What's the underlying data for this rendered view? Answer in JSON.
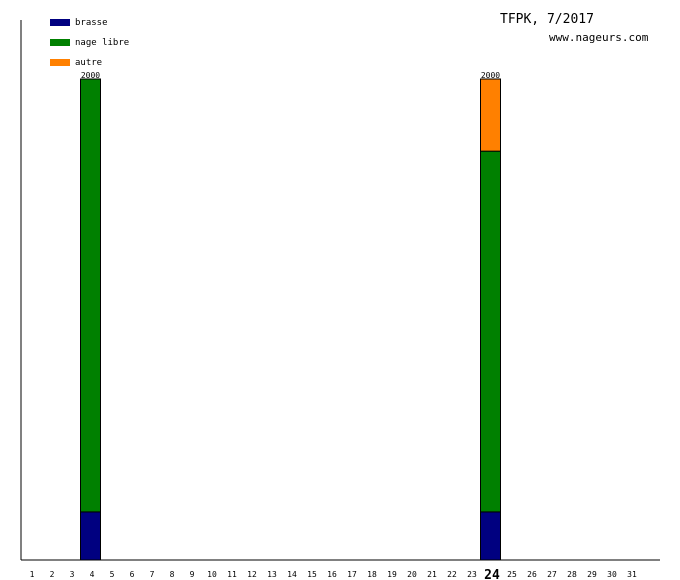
{
  "header": {
    "title": "TFPK, 7/2017",
    "site": "www.nageurs.com"
  },
  "chart_data": {
    "type": "bar",
    "stacked": true,
    "categories": [
      "1",
      "2",
      "3",
      "4",
      "5",
      "6",
      "7",
      "8",
      "9",
      "10",
      "11",
      "12",
      "13",
      "14",
      "15",
      "16",
      "17",
      "18",
      "19",
      "20",
      "21",
      "22",
      "23",
      "24",
      "25",
      "26",
      "27",
      "28",
      "29",
      "30",
      "31"
    ],
    "highlight_category": "24",
    "series": [
      {
        "name": "brasse",
        "color": "#000080",
        "values": [
          0,
          0,
          0,
          200,
          0,
          0,
          0,
          0,
          0,
          0,
          0,
          0,
          0,
          0,
          0,
          0,
          0,
          0,
          0,
          0,
          0,
          0,
          0,
          200,
          0,
          0,
          0,
          0,
          0,
          0,
          0
        ]
      },
      {
        "name": "nage libre",
        "color": "#008000",
        "values": [
          0,
          0,
          0,
          1800,
          0,
          0,
          0,
          0,
          0,
          0,
          0,
          0,
          0,
          0,
          0,
          0,
          0,
          0,
          0,
          0,
          0,
          0,
          0,
          1500,
          0,
          0,
          0,
          0,
          0,
          0,
          0
        ]
      },
      {
        "name": "autre",
        "color": "#ff8000",
        "values": [
          0,
          0,
          0,
          0,
          0,
          0,
          0,
          0,
          0,
          0,
          0,
          0,
          0,
          0,
          0,
          0,
          0,
          0,
          0,
          0,
          0,
          0,
          0,
          300,
          0,
          0,
          0,
          0,
          0,
          0,
          0
        ]
      }
    ],
    "totals": [
      {
        "category": "4",
        "label": "2000"
      },
      {
        "category": "24",
        "label": "2000"
      }
    ],
    "ylim": [
      0,
      2000
    ],
    "grid": false,
    "legend_position": "top-left"
  }
}
